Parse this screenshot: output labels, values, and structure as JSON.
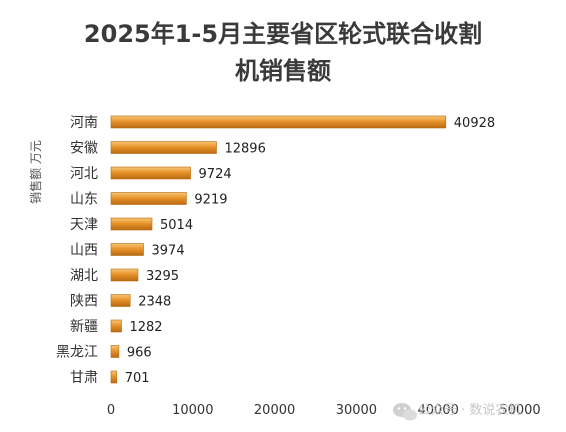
{
  "chart_data": {
    "type": "bar",
    "orientation": "horizontal",
    "title_lines": [
      "2025年1-5月主要省区轮式联合收割",
      "机销售额"
    ],
    "ylabel": "销售额 万元",
    "xlabel": "",
    "xlim": [
      0,
      50000
    ],
    "x_ticks": [
      "0",
      "10000",
      "20000",
      "30000",
      "40000",
      "50000"
    ],
    "categories": [
      "河南",
      "安徽",
      "河北",
      "山东",
      "天津",
      "山西",
      "湖北",
      "陕西",
      "新疆",
      "黑龙江",
      "甘肃"
    ],
    "values": [
      40928,
      12896,
      9724,
      9219,
      5014,
      3974,
      3295,
      2348,
      1282,
      966,
      701
    ],
    "grid": false,
    "legend": "none",
    "bar_color": "#e8932a",
    "bar_color_light": "#f7c777",
    "bar_color_dark": "#b86a12"
  },
  "watermark": {
    "icon": "wechat-icon",
    "text": "公众号 · 数说农机"
  }
}
